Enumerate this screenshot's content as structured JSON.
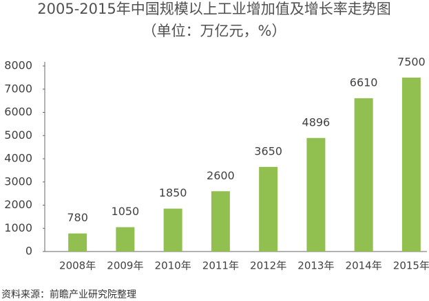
{
  "chart_data": {
    "type": "bar",
    "title": "2005-2015年中国规模以上工业增加值及增长率走势图",
    "subtitle": "（单位：万亿元，%）",
    "categories": [
      "2008年",
      "2009年",
      "2010年",
      "2011年",
      "2012年",
      "2013年",
      "2014年",
      "2015年"
    ],
    "values": [
      780,
      1050,
      1850,
      2600,
      3650,
      4896,
      6610,
      7500
    ],
    "color": "#92c050",
    "ylim": [
      0,
      8000
    ],
    "yticks": [
      0,
      1000,
      2000,
      3000,
      4000,
      5000,
      6000,
      7000,
      8000
    ],
    "grid": false,
    "source": "资料来源：前瞻产业研究院整理"
  }
}
